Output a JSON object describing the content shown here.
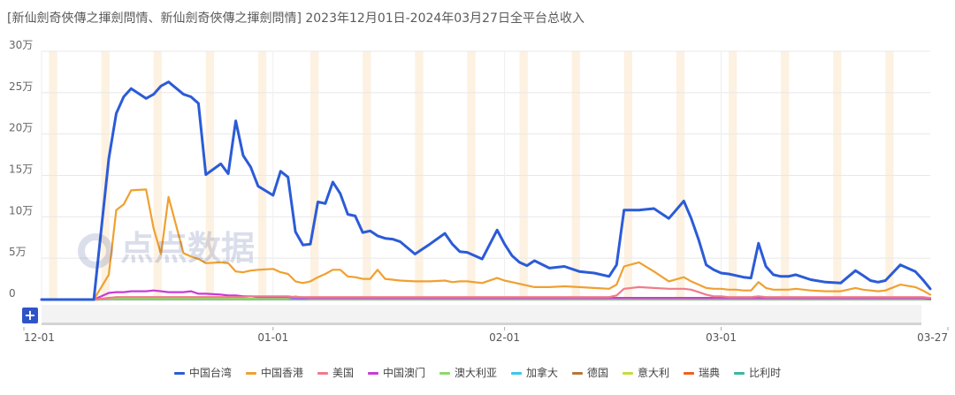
{
  "chart_data": {
    "type": "line",
    "title": "[新仙劍奇俠傳之揮劍問情、新仙劍奇俠傳之揮劍問情]  2023年12月01日-2024年03月27日全平台总收入",
    "yticks": [
      "0",
      "5万",
      "10万",
      "15万",
      "20万",
      "25万",
      "30万"
    ],
    "xticks": [
      "12-01",
      "01-01",
      "02-01",
      "03-01",
      "03-27"
    ],
    "ylim": [
      0,
      300000
    ],
    "grid": true,
    "legend_position": "bottom",
    "x_days": [
      0,
      4,
      7,
      9,
      10,
      11,
      12,
      14,
      15,
      16,
      17,
      19,
      20,
      21,
      22,
      24,
      25,
      26,
      27,
      28,
      29,
      31,
      32,
      33,
      34,
      35,
      36,
      37,
      38,
      39,
      40,
      41,
      42,
      43,
      44,
      45,
      46,
      47,
      48,
      50,
      52,
      54,
      55,
      56,
      57,
      59,
      61,
      62,
      63,
      64,
      65,
      66,
      68,
      70,
      72,
      74,
      76,
      77,
      78,
      80,
      82,
      84,
      86,
      87,
      88,
      89,
      90,
      91,
      92,
      93,
      94,
      95,
      96,
      97,
      98,
      99,
      100,
      101,
      103,
      105,
      107,
      109,
      110,
      111,
      112,
      113,
      115,
      117,
      118,
      119
    ],
    "series": [
      {
        "name": "中国台湾",
        "color": "#2b5bd7",
        "values": [
          0,
          0,
          0,
          170000,
          225000,
          245000,
          255000,
          243000,
          248000,
          258000,
          263000,
          248000,
          245000,
          237000,
          151000,
          164000,
          152000,
          216000,
          174000,
          160000,
          137000,
          126000,
          155000,
          148000,
          82000,
          66000,
          67000,
          118000,
          116000,
          142000,
          128000,
          103000,
          101000,
          81000,
          83000,
          77000,
          74000,
          73000,
          70000,
          55000,
          67000,
          80000,
          67000,
          58000,
          57000,
          49000,
          84000,
          67000,
          53000,
          45000,
          41000,
          47000,
          38000,
          40000,
          34000,
          32000,
          28000,
          42000,
          108000,
          108000,
          110000,
          98000,
          119000,
          98000,
          72000,
          42000,
          36000,
          32000,
          31000,
          29000,
          27000,
          26000,
          68000,
          40000,
          30000,
          28000,
          28000,
          30000,
          24000,
          21000,
          20000,
          35000,
          29000,
          23000,
          21000,
          23000,
          42000,
          34000,
          24000,
          13000
        ]
      },
      {
        "name": "中国香港",
        "color": "#f0a030",
        "values": [
          0,
          0,
          0,
          30000,
          108000,
          115000,
          132000,
          133000,
          86000,
          55000,
          124000,
          56000,
          52000,
          49000,
          44000,
          45000,
          44000,
          34000,
          33000,
          35000,
          36000,
          37000,
          33000,
          31000,
          22000,
          20000,
          22000,
          27000,
          31000,
          36000,
          36000,
          28000,
          27000,
          25000,
          25000,
          36000,
          25000,
          24000,
          23000,
          22000,
          22000,
          23000,
          21000,
          22000,
          22000,
          20000,
          26000,
          23000,
          21000,
          19000,
          17000,
          15000,
          15000,
          16000,
          15000,
          14000,
          13000,
          18000,
          40000,
          45000,
          34000,
          22000,
          27000,
          22000,
          18000,
          14000,
          13000,
          13000,
          12000,
          12000,
          11000,
          11000,
          21000,
          14000,
          12000,
          12000,
          12000,
          13000,
          11000,
          10000,
          10000,
          14000,
          12000,
          11000,
          10000,
          11000,
          18000,
          15000,
          11000,
          6000
        ]
      },
      {
        "name": "美国",
        "color": "#f07c8a",
        "values": [
          0,
          0,
          0,
          2000,
          3000,
          3000,
          3000,
          3000,
          3000,
          3000,
          3000,
          3000,
          3000,
          3000,
          3000,
          3000,
          3000,
          3000,
          3000,
          4000,
          4000,
          4000,
          4000,
          4000,
          3000,
          3000,
          3000,
          3000,
          3000,
          3000,
          3000,
          3000,
          3000,
          3000,
          3000,
          3000,
          3000,
          3000,
          3000,
          3000,
          3000,
          3000,
          3000,
          3000,
          3000,
          3000,
          3000,
          3000,
          3000,
          3000,
          3000,
          3000,
          3000,
          3000,
          3000,
          3000,
          3000,
          5000,
          13000,
          15000,
          14000,
          13000,
          13000,
          12000,
          9000,
          6000,
          4000,
          4000,
          3000,
          3000,
          3000,
          3000,
          4000,
          3000,
          3000,
          3000,
          3000,
          3000,
          3000,
          3000,
          3000,
          3000,
          3000,
          3000,
          3000,
          3000,
          3000,
          3000,
          3000,
          2000
        ]
      },
      {
        "name": "中国澳门",
        "color": "#c93ad6",
        "values": [
          0,
          0,
          0,
          8000,
          9000,
          9000,
          10000,
          10000,
          11000,
          10000,
          9000,
          9000,
          10000,
          7000,
          7000,
          6000,
          5000,
          5000,
          4000,
          4000,
          3000,
          3000,
          3000,
          3000,
          2000,
          2000,
          2000,
          2000,
          2000,
          2000,
          2000,
          2000,
          2000,
          2000,
          2000,
          2000,
          2000,
          2000,
          2000,
          2000,
          2000,
          2000,
          2000,
          2000,
          2000,
          2000,
          2000,
          2000,
          2000,
          2000,
          2000,
          2000,
          2000,
          2000,
          2000,
          2000,
          2000,
          2000,
          2000,
          2000,
          2000,
          2000,
          2000,
          2000,
          2000,
          2000,
          2000,
          2000,
          2000,
          2000,
          2000,
          2000,
          2000,
          2000,
          2000,
          2000,
          2000,
          2000,
          2000,
          2000,
          2000,
          2000,
          2000,
          2000,
          2000,
          2000,
          2000,
          2000,
          2000,
          1000
        ]
      },
      {
        "name": "澳大利亚",
        "color": "#8ed86a",
        "values": [
          0,
          0,
          0,
          1000,
          1000,
          1000,
          1000,
          1000,
          1000,
          1000,
          1000,
          1000,
          1000,
          1000,
          1000,
          1000,
          1000,
          1000,
          1000,
          1000,
          1000,
          1000,
          1000,
          1000,
          4000,
          2000,
          1000,
          1000,
          1000,
          1000,
          1000,
          1000,
          1000,
          1000,
          1000,
          1000,
          1000,
          1000,
          1000,
          1000,
          1000,
          1000,
          1000,
          1000,
          1000,
          1000,
          1000,
          1000,
          1000,
          1000,
          1000,
          1000,
          1000,
          1000,
          1000,
          1000,
          1000,
          1000,
          1000,
          1000,
          1000,
          1000,
          1000,
          1000,
          1000,
          1000,
          1000,
          1000,
          1000,
          1000,
          1000,
          1000,
          1000,
          1000,
          1000,
          1000,
          1000,
          1000,
          1000,
          1000,
          1000,
          1000,
          1000,
          1000,
          1000,
          1000,
          1000,
          1000,
          1000,
          1000
        ]
      },
      {
        "name": "加拿大",
        "color": "#3cc6e6",
        "values": [
          0,
          0,
          0,
          500,
          500,
          500,
          500,
          500,
          500,
          500,
          500,
          500,
          500,
          500,
          500,
          500,
          500,
          500,
          500,
          500,
          500,
          500,
          500,
          500,
          500,
          500,
          500,
          500,
          500,
          500,
          500,
          500,
          500,
          500,
          500,
          500,
          500,
          500,
          500,
          500,
          500,
          500,
          500,
          500,
          500,
          500,
          500,
          500,
          500,
          500,
          500,
          500,
          500,
          500,
          500,
          500,
          500,
          500,
          500,
          500,
          500,
          500,
          500,
          500,
          500,
          500,
          500,
          500,
          500,
          500,
          500,
          500,
          500,
          500,
          500,
          500,
          500,
          500,
          500,
          500,
          500,
          500,
          500,
          500,
          500,
          500,
          500,
          500,
          500,
          500
        ]
      },
      {
        "name": "德国",
        "color": "#b5763a",
        "values": [
          0,
          0,
          0,
          300,
          300,
          300,
          300,
          300,
          300,
          300,
          300,
          300,
          300,
          300,
          300,
          300,
          300,
          300,
          300,
          300,
          300,
          300,
          300,
          300,
          300,
          300,
          300,
          300,
          300,
          300,
          300,
          300,
          300,
          300,
          300,
          300,
          300,
          300,
          300,
          300,
          300,
          300,
          300,
          300,
          300,
          300,
          300,
          300,
          300,
          300,
          300,
          300,
          300,
          300,
          300,
          300,
          300,
          300,
          300,
          300,
          300,
          300,
          300,
          300,
          300,
          300,
          300,
          300,
          300,
          300,
          300,
          300,
          300,
          300,
          300,
          300,
          300,
          300,
          300,
          300,
          300,
          300,
          300,
          300,
          300,
          300,
          300,
          300,
          300,
          300
        ]
      },
      {
        "name": "意大利",
        "color": "#c6dc3c",
        "values": [
          0,
          0,
          0,
          200,
          200,
          200,
          200,
          200,
          200,
          200,
          200,
          200,
          200,
          200,
          200,
          200,
          200,
          200,
          200,
          200,
          200,
          200,
          200,
          200,
          200,
          200,
          200,
          200,
          200,
          200,
          200,
          200,
          200,
          200,
          200,
          200,
          200,
          200,
          200,
          200,
          200,
          200,
          200,
          200,
          200,
          200,
          200,
          200,
          200,
          200,
          200,
          200,
          200,
          200,
          200,
          200,
          200,
          200,
          200,
          200,
          200,
          200,
          200,
          200,
          200,
          200,
          200,
          200,
          200,
          200,
          200,
          200,
          200,
          200,
          200,
          200,
          200,
          200,
          200,
          200,
          200,
          200,
          200,
          200,
          200,
          200,
          200,
          200,
          200,
          200
        ]
      },
      {
        "name": "瑞典",
        "color": "#f06020",
        "values": [
          0,
          0,
          0,
          100,
          100,
          100,
          100,
          100,
          100,
          100,
          100,
          100,
          100,
          100,
          100,
          100,
          100,
          100,
          100,
          100,
          100,
          100,
          100,
          100,
          100,
          100,
          100,
          100,
          100,
          100,
          100,
          100,
          100,
          100,
          100,
          100,
          100,
          100,
          100,
          100,
          100,
          100,
          100,
          100,
          100,
          100,
          100,
          100,
          100,
          100,
          100,
          100,
          100,
          100,
          100,
          100,
          100,
          100,
          100,
          100,
          100,
          100,
          100,
          100,
          100,
          100,
          100,
          100,
          100,
          100,
          100,
          100,
          100,
          100,
          100,
          100,
          100,
          100,
          100,
          100,
          100,
          100,
          100,
          100,
          100,
          100,
          100,
          100,
          100,
          100
        ]
      },
      {
        "name": "比利时",
        "color": "#3ab8a0",
        "values": [
          0,
          0,
          0,
          100,
          100,
          100,
          100,
          100,
          100,
          100,
          100,
          100,
          100,
          100,
          100,
          100,
          100,
          100,
          100,
          100,
          100,
          100,
          100,
          100,
          100,
          100,
          100,
          100,
          100,
          100,
          100,
          100,
          100,
          100,
          100,
          100,
          100,
          100,
          100,
          100,
          100,
          100,
          100,
          100,
          100,
          100,
          100,
          100,
          100,
          100,
          100,
          100,
          100,
          100,
          100,
          100,
          100,
          100,
          100,
          100,
          100,
          100,
          100,
          100,
          100,
          100,
          100,
          100,
          100,
          100,
          100,
          100,
          100,
          100,
          100,
          100,
          100,
          100,
          100,
          100,
          100,
          100,
          100,
          100,
          100,
          100,
          100,
          100,
          100,
          100
        ]
      }
    ]
  },
  "watermark": "点点数据",
  "zoom_button": "+"
}
